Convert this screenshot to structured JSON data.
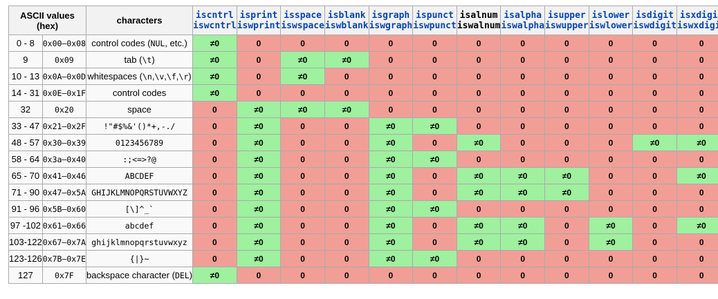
{
  "header": {
    "ascii_title": "ASCII values",
    "ascii_sub": "(hex)",
    "characters": "characters",
    "functions": [
      {
        "a": "iscntrl",
        "b": "iswcntrl"
      },
      {
        "a": "isprint",
        "b": "iswprint"
      },
      {
        "a": "isspace",
        "b": "iswspace"
      },
      {
        "a": "isblank",
        "b": "iswblank"
      },
      {
        "a": "isgraph",
        "b": "iswgraph"
      },
      {
        "a": "ispunct",
        "b": "iswpunct"
      },
      {
        "a": "isalnum",
        "b": "iswalnum"
      },
      {
        "a": "isalpha",
        "b": "iswalpha"
      },
      {
        "a": "isupper",
        "b": "iswupper"
      },
      {
        "a": "islower",
        "b": "iswlower"
      },
      {
        "a": "isdigit",
        "b": "iswdigit"
      },
      {
        "a": "isxdigit",
        "b": "iswxdigit"
      }
    ]
  },
  "labels": {
    "yes": "≠0",
    "no": "0"
  },
  "colors": {
    "yes": "#9ff09f",
    "no": "#f19e97"
  },
  "rows": [
    {
      "range": "0 - 8",
      "hex": "0x00–0x08",
      "chars": [
        {
          "t": "control codes ("
        },
        {
          "t": "NUL",
          "m": true
        },
        {
          "t": ", etc.)"
        }
      ],
      "flags": [
        1,
        0,
        0,
        0,
        0,
        0,
        0,
        0,
        0,
        0,
        0,
        0
      ]
    },
    {
      "range": "9",
      "hex": "0x09",
      "chars": [
        {
          "t": "tab ("
        },
        {
          "t": "\\t",
          "m": true
        },
        {
          "t": ")"
        }
      ],
      "flags": [
        1,
        0,
        1,
        1,
        0,
        0,
        0,
        0,
        0,
        0,
        0,
        0
      ]
    },
    {
      "range": "10 - 13",
      "hex": "0x0A–0x0D",
      "chars": [
        {
          "t": "whitespaces ("
        },
        {
          "t": "\\n",
          "m": true
        },
        {
          "t": ","
        },
        {
          "t": "\\v",
          "m": true
        },
        {
          "t": ","
        },
        {
          "t": "\\f",
          "m": true
        },
        {
          "t": ","
        },
        {
          "t": "\\r",
          "m": true
        },
        {
          "t": ")"
        }
      ],
      "flags": [
        1,
        0,
        1,
        0,
        0,
        0,
        0,
        0,
        0,
        0,
        0,
        0
      ]
    },
    {
      "range": "14 - 31",
      "hex": "0x0E–0x1F",
      "chars": [
        {
          "t": "control codes"
        }
      ],
      "flags": [
        1,
        0,
        0,
        0,
        0,
        0,
        0,
        0,
        0,
        0,
        0,
        0
      ]
    },
    {
      "range": "32",
      "hex": "0x20",
      "chars": [
        {
          "t": "space"
        }
      ],
      "flags": [
        0,
        1,
        1,
        1,
        0,
        0,
        0,
        0,
        0,
        0,
        0,
        0
      ]
    },
    {
      "range": "33 - 47",
      "hex": "0x21–0x2F",
      "chars": [
        {
          "t": "!\"#$%&'()*+,-./",
          "m": true
        }
      ],
      "flags": [
        0,
        1,
        0,
        0,
        1,
        1,
        0,
        0,
        0,
        0,
        0,
        0
      ]
    },
    {
      "range": "48 - 57",
      "hex": "0x30–0x39",
      "chars": [
        {
          "t": "0123456789",
          "m": true
        }
      ],
      "flags": [
        0,
        1,
        0,
        0,
        1,
        0,
        1,
        0,
        0,
        0,
        1,
        1
      ]
    },
    {
      "range": "58 - 64",
      "hex": "0x3a–0x40",
      "chars": [
        {
          "t": ":;<=>?@",
          "m": true
        }
      ],
      "flags": [
        0,
        1,
        0,
        0,
        1,
        1,
        0,
        0,
        0,
        0,
        0,
        0
      ]
    },
    {
      "range": "65 - 70",
      "hex": "0x41–0x46",
      "chars": [
        {
          "t": "ABCDEF",
          "m": true
        }
      ],
      "flags": [
        0,
        1,
        0,
        0,
        1,
        0,
        1,
        1,
        1,
        0,
        0,
        1
      ]
    },
    {
      "range": "71 - 90",
      "hex": "0x47–0x5A",
      "chars": [
        {
          "t": "GHIJKLMNOPQRSTUVWXYZ",
          "m": true
        }
      ],
      "flags": [
        0,
        1,
        0,
        0,
        1,
        0,
        1,
        1,
        1,
        0,
        0,
        0
      ]
    },
    {
      "range": "91 - 96",
      "hex": "0x5B–0x60",
      "chars": [
        {
          "t": "[\\]^_`",
          "m": true
        }
      ],
      "flags": [
        0,
        1,
        0,
        0,
        1,
        1,
        0,
        0,
        0,
        0,
        0,
        0
      ]
    },
    {
      "range": "97 -102",
      "hex": "0x61–0x66",
      "chars": [
        {
          "t": "abcdef",
          "m": true
        }
      ],
      "flags": [
        0,
        1,
        0,
        0,
        1,
        0,
        1,
        1,
        0,
        1,
        0,
        1
      ]
    },
    {
      "range": "103-122",
      "hex": "0x67–0x7A",
      "chars": [
        {
          "t": "ghijklmnopqrstuvwxyz",
          "m": true
        }
      ],
      "flags": [
        0,
        1,
        0,
        0,
        1,
        0,
        1,
        1,
        0,
        1,
        0,
        0
      ]
    },
    {
      "range": "123-126",
      "hex": "0x7B–0x7E",
      "chars": [
        {
          "t": "{|}~",
          "m": true
        }
      ],
      "flags": [
        0,
        1,
        0,
        0,
        1,
        1,
        0,
        0,
        0,
        0,
        0,
        0
      ]
    },
    {
      "range": "127",
      "hex": "0x7F",
      "chars": [
        {
          "t": "backspace character ("
        },
        {
          "t": "DEL",
          "m": true
        },
        {
          "t": ")"
        }
      ],
      "flags": [
        1,
        0,
        0,
        0,
        0,
        0,
        0,
        0,
        0,
        0,
        0,
        0
      ]
    }
  ]
}
